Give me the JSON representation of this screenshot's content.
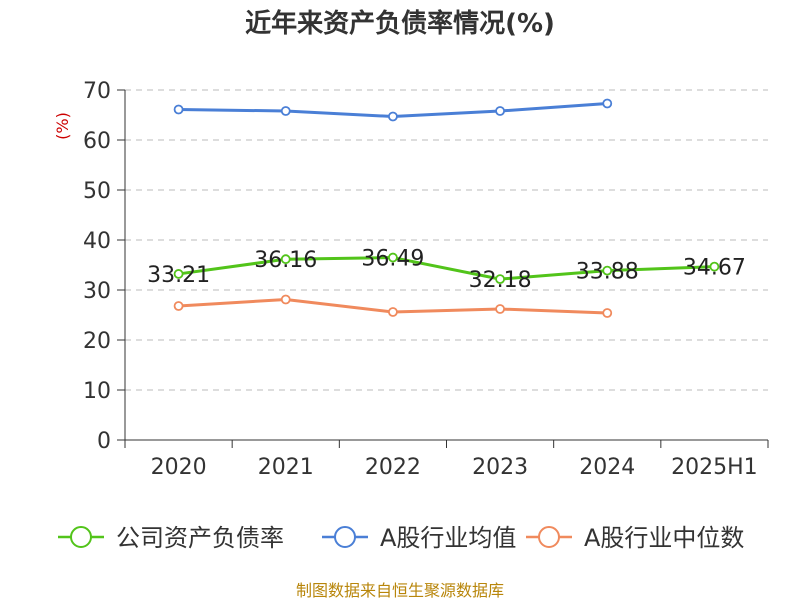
{
  "chart_data": {
    "type": "line",
    "title": "近年来资产负债率情况(%)",
    "ylabel": "(%)",
    "xlabel": "",
    "categories": [
      "2020",
      "2021",
      "2022",
      "2023",
      "2024",
      "2025H1"
    ],
    "ylim": [
      0,
      70
    ],
    "yticks": [
      0,
      10,
      20,
      30,
      40,
      50,
      60,
      70
    ],
    "grid": true,
    "legend_position": "bottom",
    "series": [
      {
        "name": "公司资产负债率",
        "color": "#52c41a",
        "values": [
          33.21,
          36.16,
          36.49,
          32.18,
          33.88,
          34.67
        ],
        "labels": [
          "33.21",
          "36.16",
          "36.49",
          "32.18",
          "33.88",
          "34.67"
        ]
      },
      {
        "name": "A股行业均值",
        "color": "#4a7fd6",
        "values": [
          66.1,
          65.8,
          64.7,
          65.8,
          67.3,
          null
        ]
      },
      {
        "name": "A股行业中位数",
        "color": "#f08a5d",
        "values": [
          26.8,
          28.1,
          25.6,
          26.2,
          25.4,
          null
        ]
      }
    ]
  },
  "source": "制图数据来自恒生聚源数据库"
}
